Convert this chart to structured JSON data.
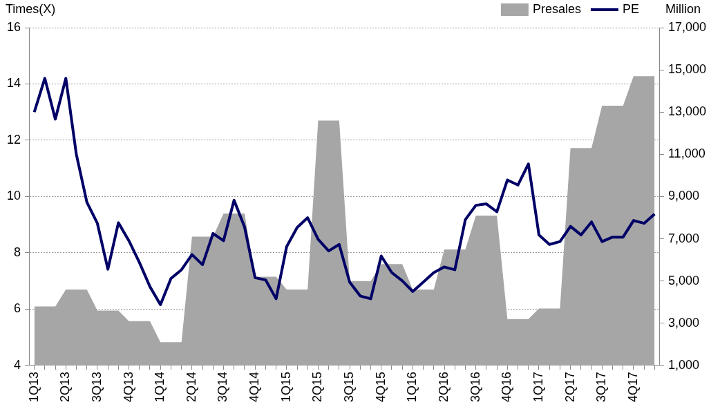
{
  "chart_data": {
    "type": "line",
    "ylabel": "Times(X)",
    "y2label": "Million",
    "categories": [
      "1Q13",
      null,
      null,
      "2Q13",
      null,
      null,
      "3Q13",
      null,
      null,
      "4Q13",
      null,
      null,
      "1Q14",
      null,
      null,
      "2Q14",
      null,
      null,
      "3Q14",
      null,
      null,
      "4Q14",
      null,
      null,
      "1Q15",
      null,
      null,
      "2Q15",
      null,
      null,
      "3Q15",
      null,
      null,
      "4Q15",
      null,
      null,
      "1Q16",
      null,
      null,
      "2Q16",
      null,
      null,
      "3Q16",
      null,
      null,
      "4Q16",
      null,
      null,
      "1Q17",
      null,
      null,
      "2Q17",
      null,
      null,
      "3Q17",
      null,
      null,
      "4Q17",
      null,
      null
    ],
    "series": [
      {
        "name": "Presales",
        "type": "area",
        "axis": "y2",
        "color": "#a6a6a6",
        "values": [
          3800,
          3800,
          3800,
          4600,
          4600,
          4600,
          3600,
          3600,
          3600,
          3100,
          3100,
          3100,
          2100,
          2100,
          2100,
          7100,
          7100,
          7100,
          8200,
          8200,
          8200,
          5200,
          5200,
          5200,
          4600,
          4600,
          4600,
          12600,
          12600,
          12600,
          5000,
          5000,
          5000,
          5800,
          5800,
          5800,
          4600,
          4600,
          4600,
          6500,
          6500,
          6500,
          8100,
          8100,
          8100,
          3200,
          3200,
          3200,
          3700,
          3700,
          3700,
          11300,
          11300,
          11300,
          13300,
          13300,
          13300,
          14700,
          14700,
          14700
        ]
      },
      {
        "name": "PE",
        "type": "line",
        "color": "#000066",
        "values": [
          13.0,
          14.2,
          12.75,
          14.2,
          11.5,
          9.8,
          9.05,
          7.42,
          9.07,
          8.43,
          7.66,
          6.8,
          6.16,
          7.09,
          7.4,
          7.94,
          7.58,
          8.69,
          8.43,
          9.87,
          8.92,
          7.12,
          7.04,
          6.37,
          8.22,
          8.9,
          9.25,
          8.48,
          8.07,
          8.3,
          6.96,
          6.47,
          6.37,
          7.89,
          7.3,
          7.01,
          6.63,
          6.96,
          7.3,
          7.5,
          7.4,
          9.18,
          9.69,
          9.74,
          9.46,
          10.59,
          10.41,
          11.16,
          8.64,
          8.3,
          8.4,
          8.94,
          8.64,
          9.1,
          8.4,
          8.56,
          8.56,
          9.15,
          9.05,
          9.38
        ]
      }
    ],
    "ylim": [
      4,
      16
    ],
    "yticks": [
      4,
      6,
      8,
      10,
      12,
      14,
      16
    ],
    "y2lim": [
      1000,
      17000
    ],
    "y2ticks": [
      {
        "value": 1000,
        "label": "1,000"
      },
      {
        "value": 3000,
        "label": "3,000"
      },
      {
        "value": 5000,
        "label": "5,000"
      },
      {
        "value": 7000,
        "label": "7,000"
      },
      {
        "value": 9000,
        "label": "9,000"
      },
      {
        "value": 11000,
        "label": "11,000"
      },
      {
        "value": 13000,
        "label": "13,000"
      },
      {
        "value": 15000,
        "label": "15,000"
      },
      {
        "value": 17000,
        "label": "17,000"
      }
    ],
    "grid": "y",
    "legend": "top right",
    "marker": "none"
  }
}
